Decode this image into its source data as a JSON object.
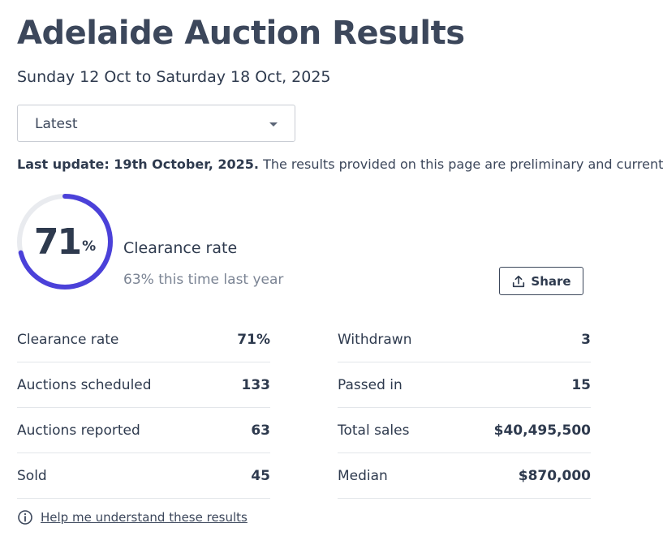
{
  "page": {
    "title": "Adelaide Auction Results",
    "date_range": "Sunday 12 Oct to Saturday 18 Oct, 2025"
  },
  "filter": {
    "selected": "Latest",
    "icon": "chevron-down-icon"
  },
  "update": {
    "bold": "Last update: 19th October, 2025.",
    "text": " The results provided on this page are preliminary and current at"
  },
  "clearance": {
    "value": "71",
    "unit": "%",
    "progress": 0.71,
    "label": "Clearance rate",
    "comparison": "63% this time last year",
    "accent_color": "#4b41d9"
  },
  "share": {
    "label": "Share",
    "icon": "share-icon"
  },
  "stats_left": [
    {
      "label": "Clearance rate",
      "value": "71%"
    },
    {
      "label": "Auctions scheduled",
      "value": "133"
    },
    {
      "label": "Auctions reported",
      "value": "63"
    },
    {
      "label": "Sold",
      "value": "45"
    }
  ],
  "stats_right": [
    {
      "label": "Withdrawn",
      "value": "3"
    },
    {
      "label": "Passed in",
      "value": "15"
    },
    {
      "label": "Total sales",
      "value": "$40,495,500"
    },
    {
      "label": "Median",
      "value": "$870,000"
    }
  ],
  "help": {
    "label": "Help me understand these results",
    "icon": "info-icon"
  }
}
